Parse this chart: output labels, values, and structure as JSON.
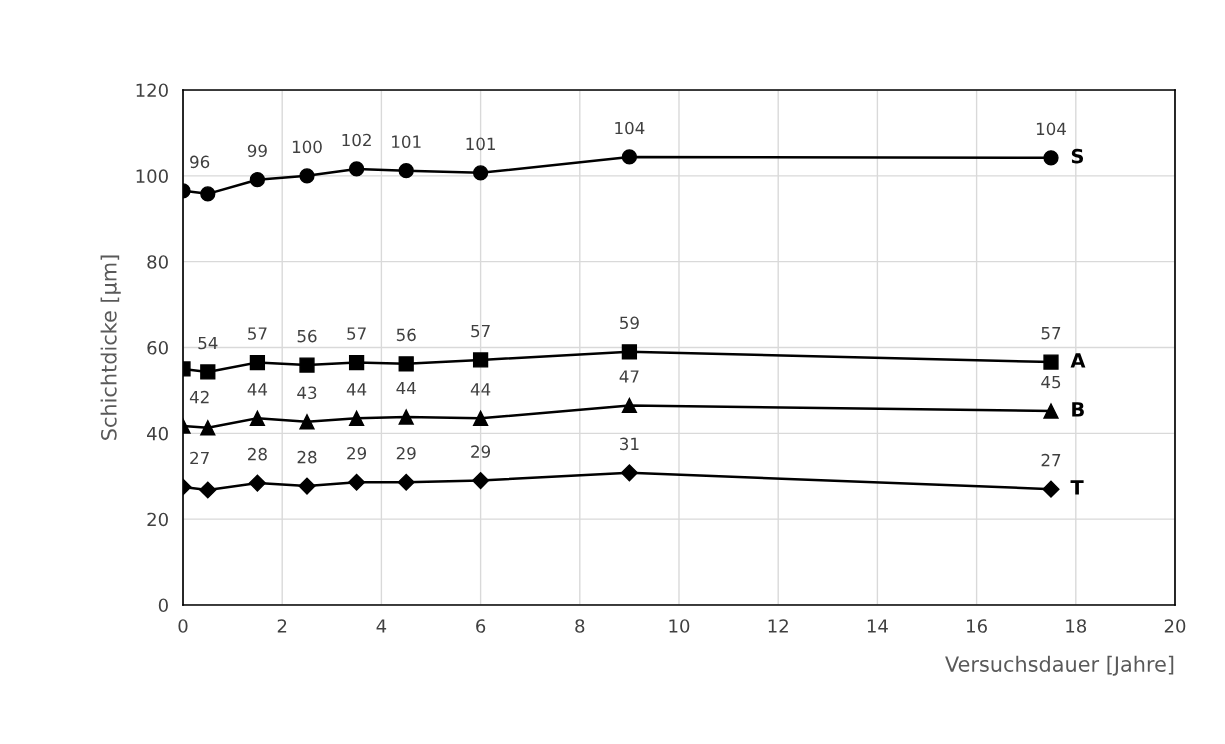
{
  "chart_data": {
    "type": "line",
    "xlabel": "Versuchsdauer [Jahre]",
    "ylabel": "Schichtdicke [µm]",
    "x": [
      0,
      0.5,
      1.5,
      2.5,
      3.5,
      4.5,
      6,
      9,
      17.5
    ],
    "series": [
      {
        "name": "S",
        "color": "#000000",
        "marker": "circle",
        "values": [
          96.5,
          95.8,
          99.1,
          100,
          101.6,
          101.2,
          100.7,
          104.4,
          104.2
        ],
        "value_labels": [
          "96",
          null,
          "99",
          "100",
          "102",
          "101",
          "101",
          "104",
          "104"
        ]
      },
      {
        "name": "A",
        "color": "#000000",
        "marker": "square",
        "values": [
          55.0,
          54.3,
          56.5,
          55.9,
          56.5,
          56.2,
          57.1,
          59.0,
          56.6
        ],
        "value_labels": [
          null,
          "54",
          "57",
          "56",
          "57",
          "56",
          "57",
          "59",
          "57"
        ]
      },
      {
        "name": "B",
        "color": "#000000",
        "marker": "triangle",
        "values": [
          41.7,
          41.3,
          43.5,
          42.7,
          43.5,
          43.8,
          43.5,
          46.5,
          45.2
        ],
        "value_labels": [
          "42",
          null,
          "44",
          "43",
          "44",
          "44",
          "44",
          "47",
          "45"
        ]
      },
      {
        "name": "T",
        "color": "#000000",
        "marker": "diamond",
        "values": [
          27.5,
          26.8,
          28.4,
          27.7,
          28.6,
          28.6,
          29.0,
          30.8,
          27.0
        ],
        "value_labels": [
          "27",
          null,
          "28",
          "28",
          "29",
          "29",
          "29",
          "31",
          "27"
        ]
      }
    ],
    "xlim": [
      0,
      20
    ],
    "xticks": [
      0,
      2,
      4,
      6,
      8,
      10,
      12,
      14,
      16,
      18,
      20
    ],
    "ylim": [
      0,
      120
    ],
    "yticks": [
      0,
      20,
      40,
      60,
      80,
      100,
      120
    ],
    "grid": true,
    "legend": false,
    "line_style": "solid"
  }
}
